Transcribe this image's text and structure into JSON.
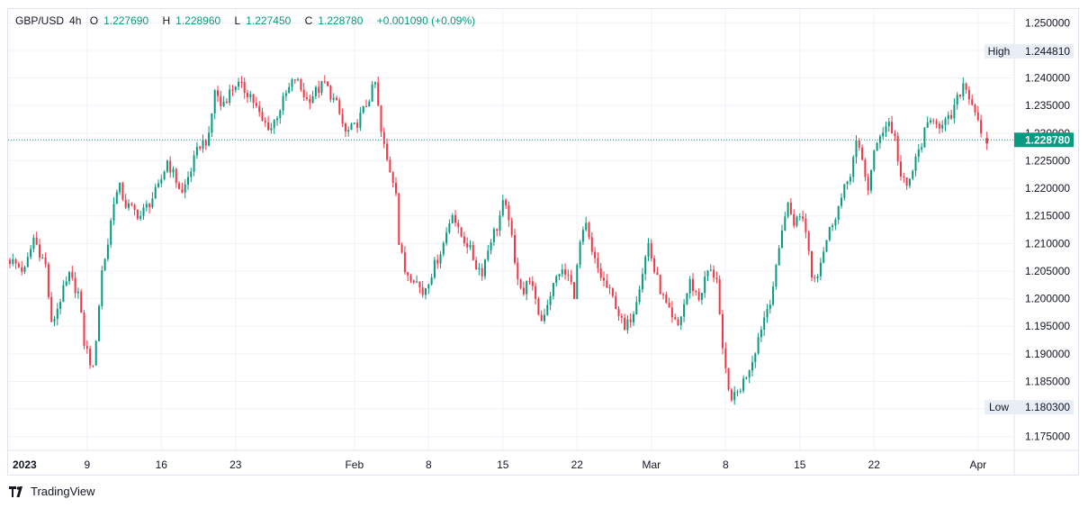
{
  "legend": {
    "symbol": "GBP/USD",
    "interval": "4h",
    "open_label": "O",
    "open": "1.227690",
    "high_label": "H",
    "high": "1.228960",
    "low_label": "L",
    "low": "1.227450",
    "close_label": "C",
    "close": "1.228780",
    "change": "+0.001090 (+0.09%)"
  },
  "markers": {
    "high_label": "High",
    "high_value": "1.244810",
    "low_label": "Low",
    "low_value": "1.180300",
    "last_value": "1.228780"
  },
  "brand": {
    "name": "TradingView"
  },
  "colors": {
    "up": "#089981",
    "down": "#f23645",
    "grid": "#f0f3fa",
    "last_price": "#089981"
  },
  "chart_data": {
    "type": "candlestick",
    "y_range": [
      1.1725,
      1.2525
    ],
    "y_ticks": [
      "1.250000",
      "1.245000",
      "1.240000",
      "1.235000",
      "1.230000",
      "1.225000",
      "1.220000",
      "1.215000",
      "1.210000",
      "1.205000",
      "1.200000",
      "1.195000",
      "1.190000",
      "1.185000",
      "1.180000",
      "1.175000"
    ],
    "x_ticks": [
      "2023",
      "9",
      "16",
      "23",
      "Feb",
      "8",
      "15",
      "22",
      "Mar",
      "8",
      "15",
      "22",
      "Apr"
    ],
    "x_tick_index": [
      0,
      26,
      51,
      76,
      116,
      141,
      166,
      191,
      216,
      241,
      266,
      291,
      326
    ],
    "candle_count": 330,
    "close_path": [
      {
        "i": 0,
        "p": 1.207
      },
      {
        "i": 5,
        "p": 1.205
      },
      {
        "i": 8,
        "p": 1.211
      },
      {
        "i": 12,
        "p": 1.206
      },
      {
        "i": 14,
        "p": 1.195
      },
      {
        "i": 17,
        "p": 1.2
      },
      {
        "i": 20,
        "p": 1.204
      },
      {
        "i": 23,
        "p": 1.201
      },
      {
        "i": 25,
        "p": 1.192
      },
      {
        "i": 28,
        "p": 1.187
      },
      {
        "i": 31,
        "p": 1.205
      },
      {
        "i": 33,
        "p": 1.21
      },
      {
        "i": 35,
        "p": 1.218
      },
      {
        "i": 37,
        "p": 1.22
      },
      {
        "i": 39,
        "p": 1.217
      },
      {
        "i": 44,
        "p": 1.215
      },
      {
        "i": 50,
        "p": 1.22
      },
      {
        "i": 53,
        "p": 1.225
      },
      {
        "i": 58,
        "p": 1.219
      },
      {
        "i": 64,
        "p": 1.228
      },
      {
        "i": 67,
        "p": 1.229
      },
      {
        "i": 69,
        "p": 1.238
      },
      {
        "i": 71,
        "p": 1.235
      },
      {
        "i": 76,
        "p": 1.239
      },
      {
        "i": 81,
        "p": 1.237
      },
      {
        "i": 85,
        "p": 1.232
      },
      {
        "i": 88,
        "p": 1.231
      },
      {
        "i": 93,
        "p": 1.237
      },
      {
        "i": 96,
        "p": 1.24
      },
      {
        "i": 100,
        "p": 1.236
      },
      {
        "i": 106,
        "p": 1.239
      },
      {
        "i": 110,
        "p": 1.235
      },
      {
        "i": 113,
        "p": 1.23
      },
      {
        "i": 116,
        "p": 1.231
      },
      {
        "i": 119,
        "p": 1.234
      },
      {
        "i": 123,
        "p": 1.239
      },
      {
        "i": 125,
        "p": 1.23
      },
      {
        "i": 127,
        "p": 1.225
      },
      {
        "i": 130,
        "p": 1.22
      },
      {
        "i": 131,
        "p": 1.21
      },
      {
        "i": 133,
        "p": 1.205
      },
      {
        "i": 136,
        "p": 1.204
      },
      {
        "i": 139,
        "p": 1.201
      },
      {
        "i": 143,
        "p": 1.206
      },
      {
        "i": 146,
        "p": 1.21
      },
      {
        "i": 149,
        "p": 1.216
      },
      {
        "i": 151,
        "p": 1.212
      },
      {
        "i": 154,
        "p": 1.21
      },
      {
        "i": 157,
        "p": 1.206
      },
      {
        "i": 159,
        "p": 1.205
      },
      {
        "i": 162,
        "p": 1.211
      },
      {
        "i": 164,
        "p": 1.213
      },
      {
        "i": 166,
        "p": 1.217
      },
      {
        "i": 168,
        "p": 1.215
      },
      {
        "i": 170,
        "p": 1.206
      },
      {
        "i": 173,
        "p": 1.201
      },
      {
        "i": 175,
        "p": 1.204
      },
      {
        "i": 177,
        "p": 1.199
      },
      {
        "i": 179,
        "p": 1.196
      },
      {
        "i": 182,
        "p": 1.201
      },
      {
        "i": 185,
        "p": 1.205
      },
      {
        "i": 188,
        "p": 1.204
      },
      {
        "i": 190,
        "p": 1.201
      },
      {
        "i": 192,
        "p": 1.21
      },
      {
        "i": 194,
        "p": 1.213
      },
      {
        "i": 196,
        "p": 1.208
      },
      {
        "i": 199,
        "p": 1.204
      },
      {
        "i": 202,
        "p": 1.201
      },
      {
        "i": 204,
        "p": 1.199
      },
      {
        "i": 207,
        "p": 1.194
      },
      {
        "i": 210,
        "p": 1.198
      },
      {
        "i": 213,
        "p": 1.205
      },
      {
        "i": 215,
        "p": 1.21
      },
      {
        "i": 217,
        "p": 1.205
      },
      {
        "i": 220,
        "p": 1.2
      },
      {
        "i": 223,
        "p": 1.196
      },
      {
        "i": 225,
        "p": 1.195
      },
      {
        "i": 227,
        "p": 1.199
      },
      {
        "i": 229,
        "p": 1.203
      },
      {
        "i": 232,
        "p": 1.2
      },
      {
        "i": 235,
        "p": 1.205
      },
      {
        "i": 238,
        "p": 1.204
      },
      {
        "i": 240,
        "p": 1.19
      },
      {
        "i": 242,
        "p": 1.183
      },
      {
        "i": 244,
        "p": 1.182
      },
      {
        "i": 247,
        "p": 1.185
      },
      {
        "i": 250,
        "p": 1.189
      },
      {
        "i": 253,
        "p": 1.195
      },
      {
        "i": 256,
        "p": 1.2
      },
      {
        "i": 258,
        "p": 1.205
      },
      {
        "i": 260,
        "p": 1.213
      },
      {
        "i": 262,
        "p": 1.217
      },
      {
        "i": 264,
        "p": 1.214
      },
      {
        "i": 267,
        "p": 1.215
      },
      {
        "i": 269,
        "p": 1.209
      },
      {
        "i": 270,
        "p": 1.204
      },
      {
        "i": 272,
        "p": 1.205
      },
      {
        "i": 274,
        "p": 1.209
      },
      {
        "i": 277,
        "p": 1.214
      },
      {
        "i": 280,
        "p": 1.218
      },
      {
        "i": 283,
        "p": 1.223
      },
      {
        "i": 285,
        "p": 1.228
      },
      {
        "i": 287,
        "p": 1.225
      },
      {
        "i": 289,
        "p": 1.22
      },
      {
        "i": 291,
        "p": 1.226
      },
      {
        "i": 293,
        "p": 1.23
      },
      {
        "i": 296,
        "p": 1.232
      },
      {
        "i": 298,
        "p": 1.229
      },
      {
        "i": 300,
        "p": 1.222
      },
      {
        "i": 302,
        "p": 1.22
      },
      {
        "i": 305,
        "p": 1.225
      },
      {
        "i": 308,
        "p": 1.23
      },
      {
        "i": 311,
        "p": 1.233
      },
      {
        "i": 314,
        "p": 1.231
      },
      {
        "i": 317,
        "p": 1.233
      },
      {
        "i": 319,
        "p": 1.236
      },
      {
        "i": 321,
        "p": 1.239
      },
      {
        "i": 323,
        "p": 1.237
      },
      {
        "i": 325,
        "p": 1.234
      },
      {
        "i": 326,
        "p": 1.233
      },
      {
        "i": 327,
        "p": 1.229
      },
      {
        "i": 328,
        "p": 1.228
      }
    ],
    "last_candle": {
      "open": 1.22769,
      "high": 1.22896,
      "low": 1.22745,
      "close": 1.22878
    }
  }
}
